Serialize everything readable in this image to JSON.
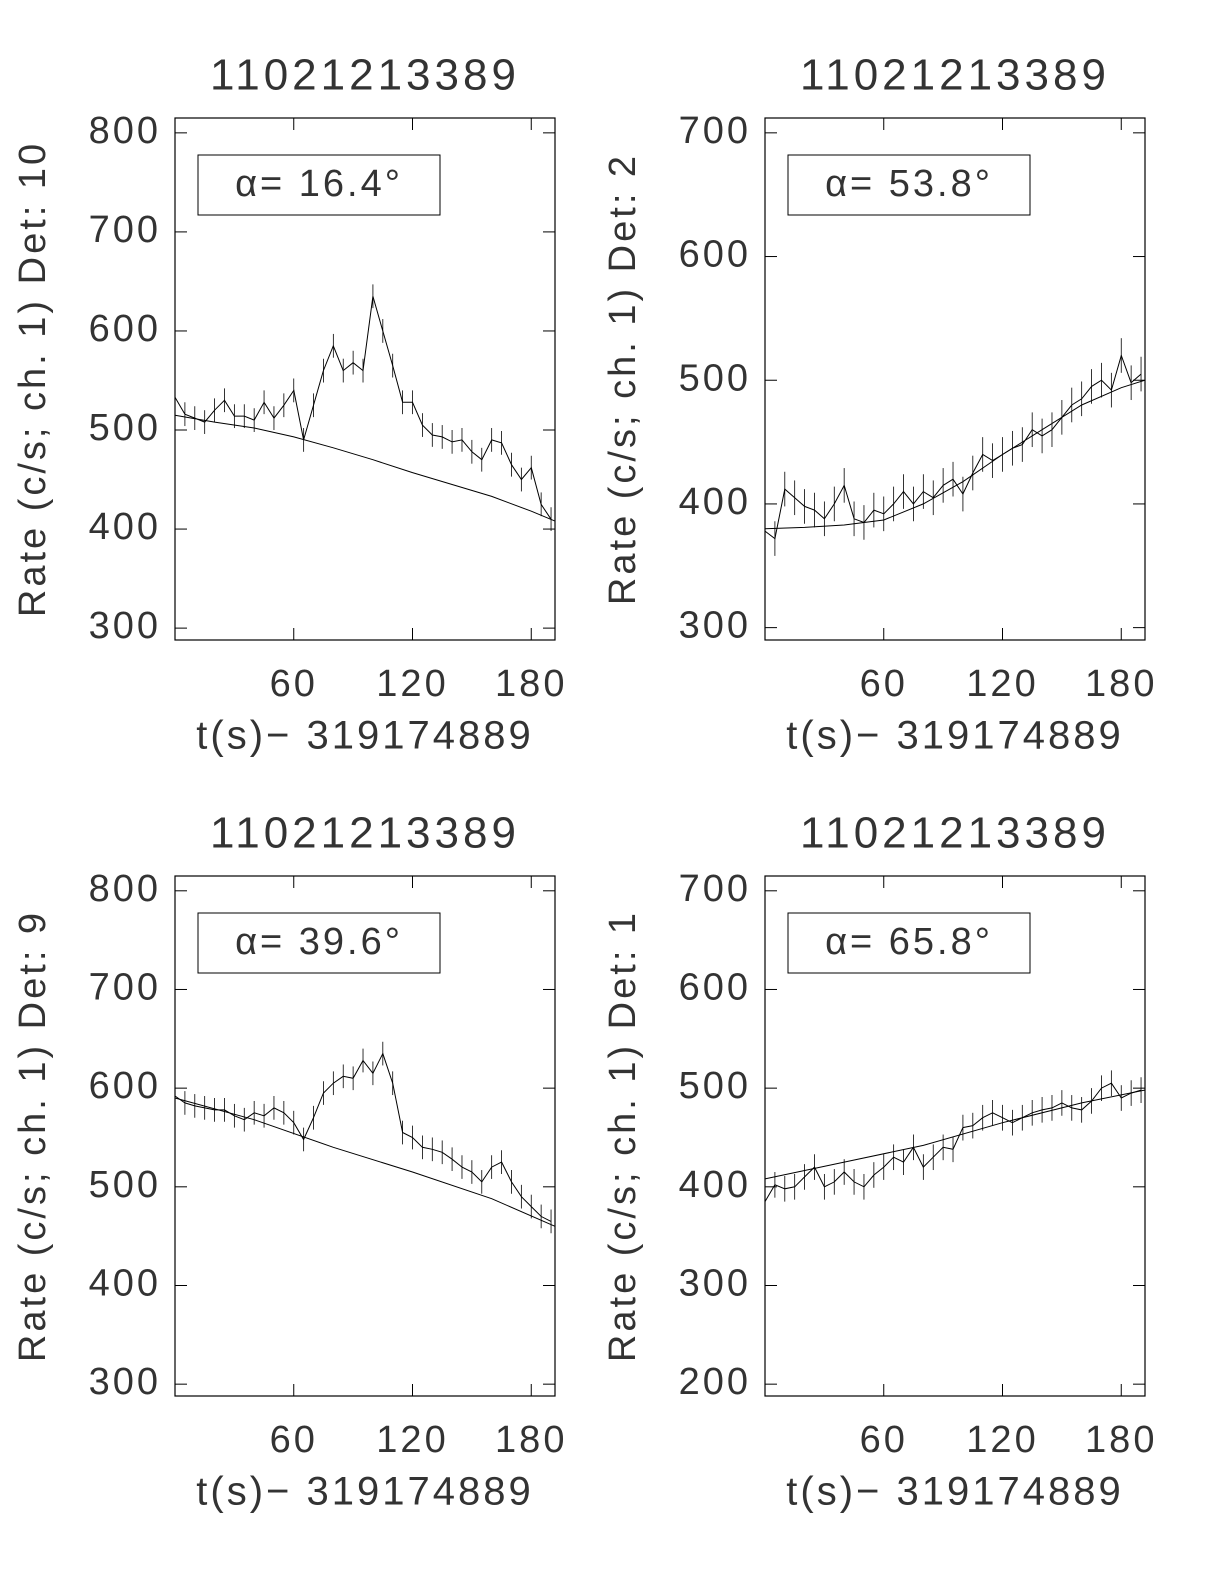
{
  "chart_data": [
    {
      "type": "line",
      "title": "11021213389",
      "xlabel": "t(s)− 319174889",
      "ylabel": "Rate (c/s; ch. 1) Det: 10",
      "annotation": "α= 16.4°",
      "xlim": [
        0,
        192
      ],
      "xticks": [
        60,
        120,
        180
      ],
      "ylim": [
        288,
        815
      ],
      "yticks": [
        300,
        400,
        500,
        600,
        700,
        800
      ],
      "series": [
        {
          "color": "#000000",
          "x": [
            0,
            5,
            10,
            15,
            20,
            25,
            30,
            35,
            40,
            45,
            50,
            55,
            60,
            65,
            70,
            75,
            80,
            85,
            90,
            95,
            100,
            105,
            110,
            115,
            120,
            125,
            130,
            135,
            140,
            145,
            150,
            155,
            160,
            165,
            170,
            175,
            180,
            185,
            190
          ],
          "values": [
            533,
            516,
            512,
            508,
            520,
            530,
            514,
            514,
            510,
            528,
            512,
            525,
            540,
            490,
            525,
            560,
            585,
            560,
            568,
            560,
            635,
            600,
            565,
            528,
            528,
            505,
            495,
            493,
            488,
            490,
            478,
            470,
            490,
            487,
            465,
            450,
            462,
            425,
            410
          ],
          "yerr": 12
        },
        {
          "color": "#000000",
          "x": [
            0,
            20,
            40,
            60,
            80,
            100,
            120,
            140,
            160,
            180,
            192
          ],
          "values": [
            515,
            508,
            502,
            493,
            482,
            470,
            457,
            445,
            433,
            418,
            408
          ]
        }
      ]
    },
    {
      "type": "line",
      "title": "11021213389",
      "xlabel": "t(s)− 319174889",
      "ylabel": "Rate (c/s; ch. 1) Det: 2",
      "annotation": "α= 53.8°",
      "xlim": [
        0,
        192
      ],
      "xticks": [
        60,
        120,
        180
      ],
      "ylim": [
        290,
        712
      ],
      "yticks": [
        300,
        400,
        500,
        600,
        700
      ],
      "series": [
        {
          "color": "#000000",
          "x": [
            0,
            5,
            10,
            15,
            20,
            25,
            30,
            35,
            40,
            45,
            50,
            55,
            60,
            65,
            70,
            75,
            80,
            85,
            90,
            95,
            100,
            105,
            110,
            115,
            120,
            125,
            130,
            135,
            140,
            145,
            150,
            155,
            160,
            165,
            170,
            175,
            180,
            185,
            190
          ],
          "values": [
            378,
            372,
            412,
            405,
            398,
            395,
            388,
            400,
            415,
            388,
            385,
            395,
            392,
            400,
            410,
            400,
            410,
            405,
            415,
            420,
            408,
            425,
            440,
            435,
            440,
            445,
            448,
            460,
            455,
            460,
            470,
            480,
            485,
            495,
            500,
            492,
            520,
            498,
            505
          ],
          "yerr": 14
        },
        {
          "color": "#000000",
          "x": [
            0,
            20,
            40,
            60,
            80,
            100,
            120,
            140,
            160,
            180,
            192
          ],
          "values": [
            380,
            381,
            383,
            387,
            400,
            418,
            440,
            460,
            480,
            494,
            500
          ]
        }
      ]
    },
    {
      "type": "line",
      "title": "11021213389",
      "xlabel": "t(s)− 319174889",
      "ylabel": "Rate (c/s; ch. 1) Det: 9",
      "annotation": "α= 39.6°",
      "xlim": [
        0,
        192
      ],
      "xticks": [
        60,
        120,
        180
      ],
      "ylim": [
        288,
        815
      ],
      "yticks": [
        300,
        400,
        500,
        600,
        700,
        800
      ],
      "series": [
        {
          "color": "#000000",
          "x": [
            0,
            5,
            10,
            15,
            20,
            25,
            30,
            35,
            40,
            45,
            50,
            55,
            60,
            65,
            70,
            75,
            80,
            85,
            90,
            95,
            100,
            105,
            110,
            115,
            120,
            125,
            130,
            135,
            140,
            145,
            150,
            155,
            160,
            165,
            170,
            175,
            180,
            185,
            190
          ],
          "values": [
            592,
            585,
            582,
            580,
            578,
            578,
            572,
            568,
            575,
            572,
            580,
            575,
            565,
            548,
            570,
            595,
            605,
            612,
            610,
            628,
            615,
            635,
            605,
            555,
            550,
            540,
            538,
            535,
            528,
            520,
            515,
            505,
            520,
            525,
            505,
            490,
            480,
            470,
            465
          ],
          "yerr": 12
        },
        {
          "color": "#000000",
          "x": [
            0,
            40,
            80,
            120,
            160,
            192
          ],
          "values": [
            590,
            568,
            540,
            515,
            488,
            460
          ]
        }
      ]
    },
    {
      "type": "line",
      "title": "11021213389",
      "xlabel": "t(s)− 319174889",
      "ylabel": "Rate (c/s; ch. 1) Det: 1",
      "annotation": "α= 65.8°",
      "xlim": [
        0,
        192
      ],
      "xticks": [
        60,
        120,
        180
      ],
      "ylim": [
        188,
        715
      ],
      "yticks": [
        200,
        300,
        400,
        500,
        600,
        700
      ],
      "series": [
        {
          "color": "#000000",
          "x": [
            0,
            5,
            10,
            15,
            20,
            25,
            30,
            35,
            40,
            45,
            50,
            55,
            60,
            65,
            70,
            75,
            80,
            85,
            90,
            95,
            100,
            105,
            110,
            115,
            120,
            125,
            130,
            135,
            140,
            145,
            150,
            155,
            160,
            165,
            170,
            175,
            180,
            185,
            190
          ],
          "values": [
            385,
            402,
            398,
            400,
            410,
            420,
            400,
            405,
            415,
            405,
            400,
            412,
            420,
            430,
            425,
            440,
            420,
            430,
            440,
            438,
            460,
            462,
            470,
            475,
            470,
            465,
            470,
            475,
            478,
            480,
            485,
            480,
            478,
            487,
            500,
            505,
            490,
            495,
            498
          ],
          "yerr": 13
        },
        {
          "color": "#000000",
          "x": [
            0,
            40,
            80,
            120,
            160,
            192
          ],
          "values": [
            408,
            425,
            442,
            465,
            485,
            498
          ]
        }
      ]
    }
  ]
}
